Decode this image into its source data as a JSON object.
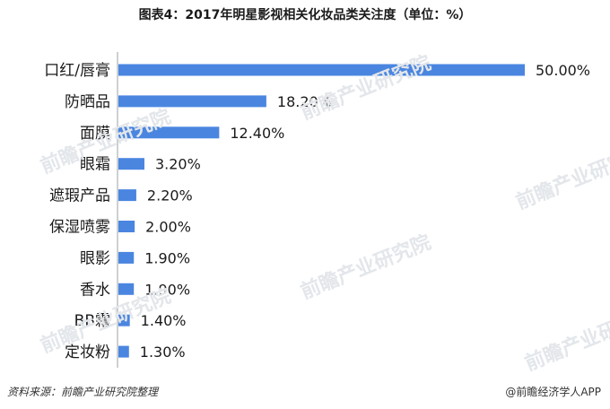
{
  "title": "图表4：2017年明星影视相关化妆品类关注度（单位：%）",
  "chart_data": {
    "type": "bar",
    "orientation": "horizontal",
    "title": "图表4：2017年明星影视相关化妆品类关注度（单位：%）",
    "categories": [
      "口红/唇膏",
      "防晒品",
      "面膜",
      "眼霜",
      "遮瑕产品",
      "保湿喷雾",
      "眼影",
      "香水",
      "BB霜",
      "定妆粉"
    ],
    "values": [
      50.0,
      18.2,
      12.4,
      3.2,
      2.2,
      2.0,
      1.9,
      1.9,
      1.4,
      1.3
    ],
    "value_labels": [
      "50.00%",
      "18.20%",
      "12.40%",
      "3.20%",
      "2.20%",
      "2.00%",
      "1.90%",
      "1.90%",
      "1.40%",
      "1.30%"
    ],
    "xlim": [
      0,
      50
    ],
    "xlabel": "",
    "ylabel": "",
    "grid": false,
    "legend": "none",
    "colors": {
      "bar": "#4a86e0"
    }
  },
  "footer": {
    "source": "资料来源：前瞻产业研究院整理",
    "brand": "@前瞻经济学人APP"
  },
  "watermark": "前瞻产业研究院"
}
